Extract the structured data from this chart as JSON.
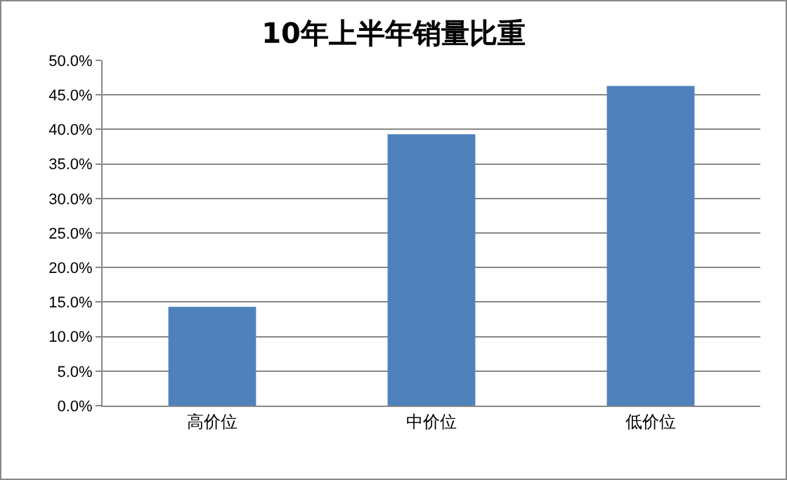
{
  "chart_data": {
    "type": "bar",
    "title": "10年上半年销量比重",
    "categories": [
      "高价位",
      "中价位",
      "低价位"
    ],
    "values": [
      14.3,
      39.3,
      46.3
    ],
    "color": "#4f81bd",
    "ylim": [
      0,
      50
    ],
    "yticks": [
      {
        "value": 0,
        "label": "0.0%"
      },
      {
        "value": 5,
        "label": "5.0%"
      },
      {
        "value": 10,
        "label": "10.0%"
      },
      {
        "value": 15,
        "label": "15.0%"
      },
      {
        "value": 20,
        "label": "20.0%"
      },
      {
        "value": 25,
        "label": "25.0%"
      },
      {
        "value": 30,
        "label": "30.0%"
      },
      {
        "value": 35,
        "label": "35.0%"
      },
      {
        "value": 40,
        "label": "40.0%"
      },
      {
        "value": 45,
        "label": "45.0%"
      },
      {
        "value": 50,
        "label": "50.0%"
      }
    ],
    "grid": true
  }
}
